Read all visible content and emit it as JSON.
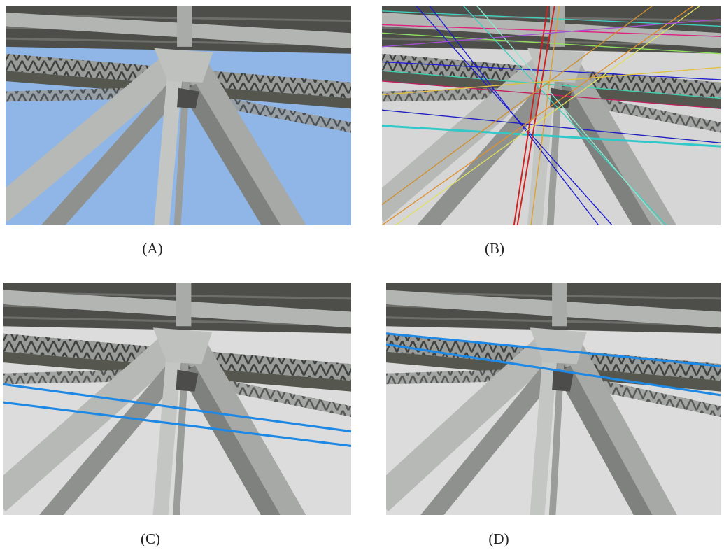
{
  "figure": {
    "panels": [
      {
        "caption": "(A)"
      },
      {
        "caption": "(B)"
      },
      {
        "caption": "(C)"
      },
      {
        "caption": "(D)"
      }
    ]
  }
}
